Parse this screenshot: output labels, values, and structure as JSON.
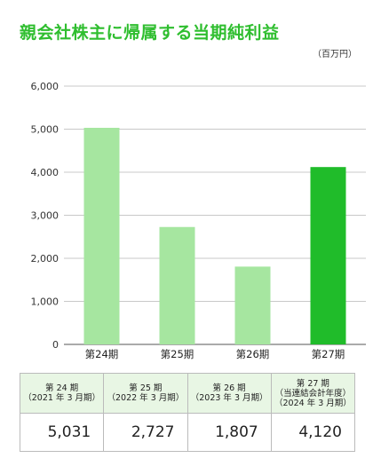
{
  "title": "親会社株主に帰属する当期純利益",
  "unit_label": "（百万円）",
  "chart_data": {
    "type": "bar",
    "categories": [
      "第24期",
      "第25期",
      "第26期",
      "第27期"
    ],
    "values": [
      5031,
      2727,
      1807,
      4120
    ],
    "ylim": [
      0,
      6000
    ],
    "yticks": [
      0,
      1000,
      2000,
      3000,
      4000,
      5000,
      6000
    ],
    "ytick_labels": [
      "0",
      "1,000",
      "2,000",
      "3,000",
      "4,000",
      "5,000",
      "6,000"
    ],
    "grid": true,
    "colors": [
      "#a6e6a0",
      "#a6e6a0",
      "#a6e6a0",
      "#20bc2a"
    ]
  },
  "table": {
    "headers": [
      [
        "第 24 期",
        "（2021 年 3 月期）"
      ],
      [
        "第 25 期",
        "（2022 年 3 月期）"
      ],
      [
        "第 26 期",
        "（2023 年 3 月期）"
      ],
      [
        "第 27 期",
        "（当連結会計年度）",
        "（2024 年 3 月期）"
      ]
    ],
    "values": [
      "5,031",
      "2,727",
      "1,807",
      "4,120"
    ]
  }
}
